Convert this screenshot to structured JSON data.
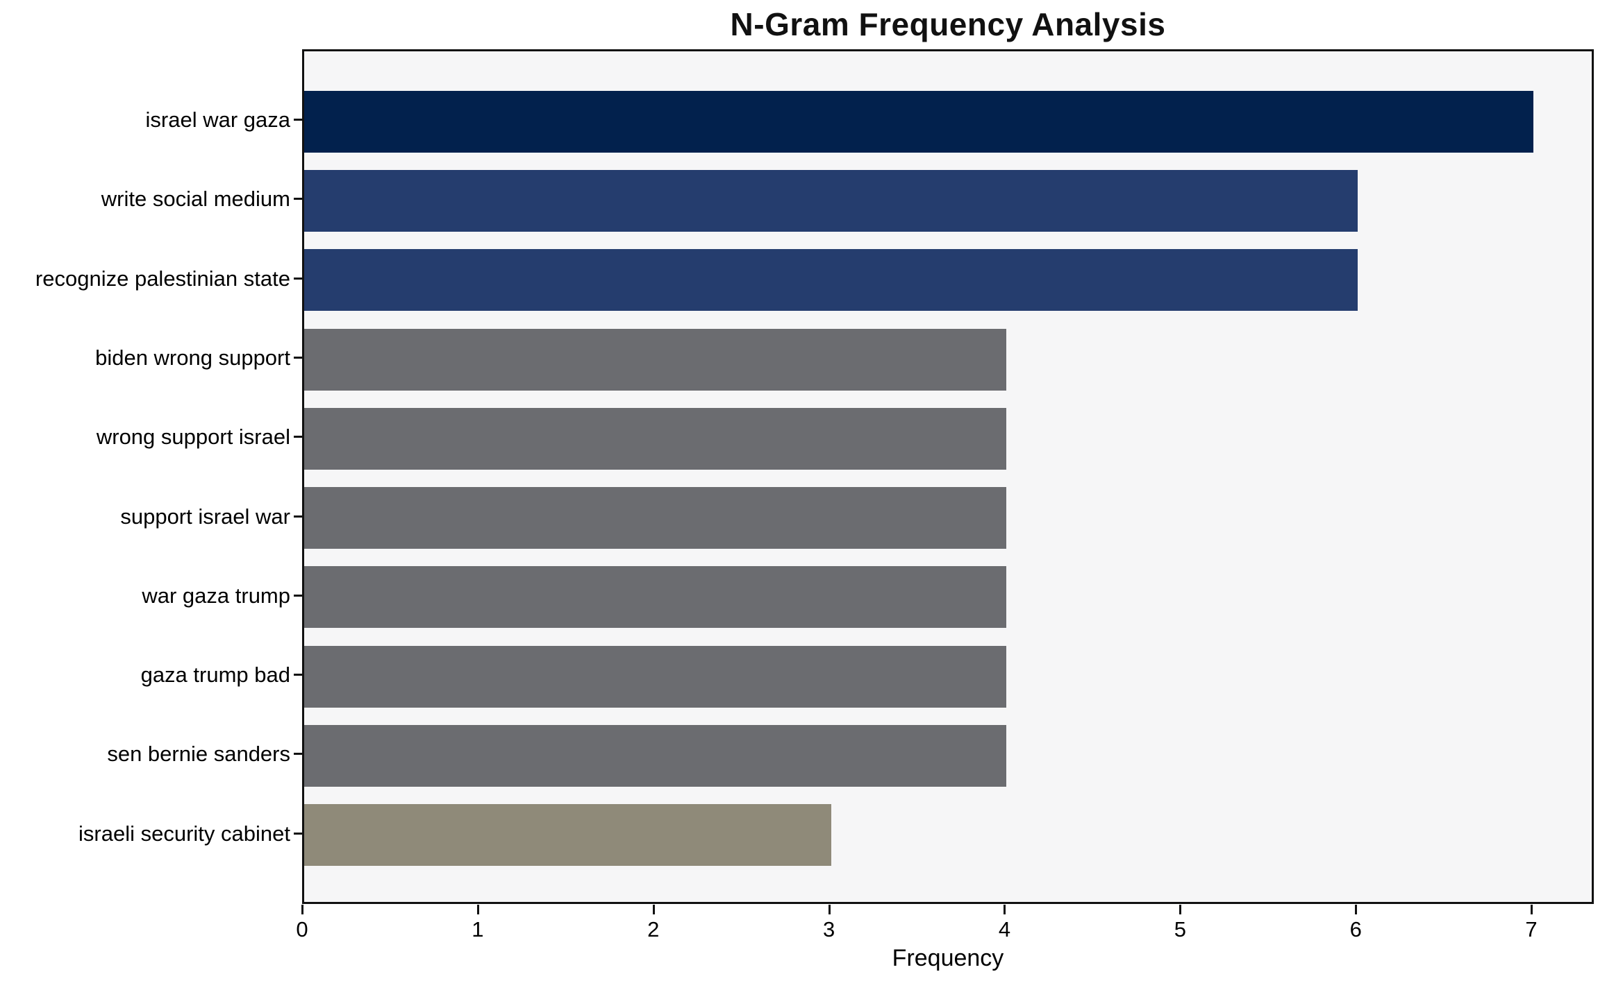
{
  "chart_data": {
    "type": "bar",
    "orientation": "horizontal",
    "title": "N-Gram Frequency Analysis",
    "xlabel": "Frequency",
    "ylabel": "",
    "categories": [
      "israel war gaza",
      "write social medium",
      "recognize palestinian state",
      "biden wrong support",
      "wrong support israel",
      "support israel war",
      "war gaza trump",
      "gaza trump bad",
      "sen bernie sanders",
      "israeli security cabinet"
    ],
    "values": [
      7,
      6,
      6,
      4,
      4,
      4,
      4,
      4,
      4,
      3
    ],
    "bar_colors": [
      "#02214d",
      "#253d6e",
      "#253d6e",
      "#6b6c70",
      "#6b6c70",
      "#6b6c70",
      "#6b6c70",
      "#6b6c70",
      "#6b6c70",
      "#8f8a79"
    ],
    "x_ticks": [
      "0",
      "1",
      "2",
      "3",
      "4",
      "5",
      "6",
      "7"
    ],
    "xlim": [
      0,
      7.3557
    ],
    "grid": false,
    "legend_position": "none",
    "plot_background": "#f6f6f7",
    "figure_background": "#ffffff"
  }
}
